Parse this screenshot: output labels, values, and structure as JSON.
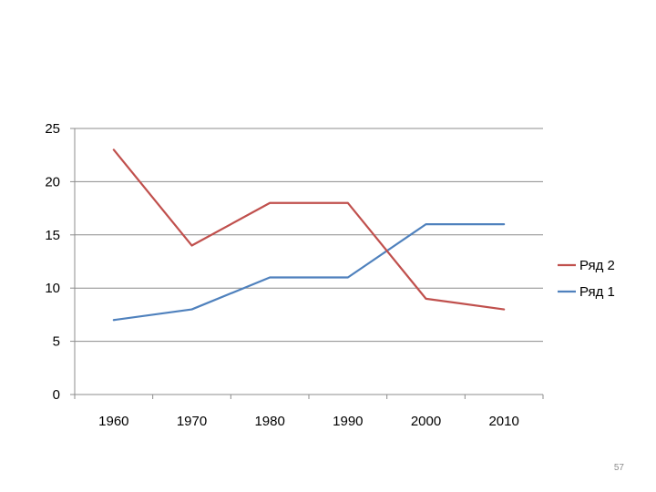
{
  "chart_data": {
    "type": "line",
    "title": "",
    "xlabel": "",
    "ylabel": "",
    "categories": [
      "1960",
      "1970",
      "1980",
      "1990",
      "2000",
      "2010"
    ],
    "ylim": [
      0,
      25
    ],
    "yticks": [
      0,
      5,
      10,
      15,
      20,
      25
    ],
    "grid": true,
    "legend": "right",
    "series": [
      {
        "name": "Ряд 2",
        "color": "#c0504d",
        "values": [
          23,
          14,
          18,
          18,
          9,
          8
        ]
      },
      {
        "name": "Ряд 1",
        "color": "#4f81bd",
        "values": [
          7,
          8,
          11,
          11,
          16,
          16
        ]
      }
    ]
  },
  "slide": {
    "page_number": "57"
  }
}
